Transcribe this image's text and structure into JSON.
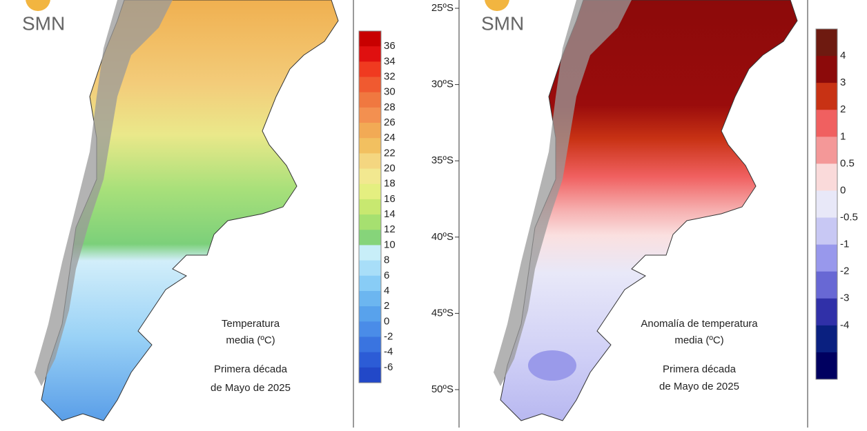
{
  "panels": [
    {
      "logo": "SMN",
      "caption": [
        "Temperatura",
        "media (ºC)",
        "Primera década",
        "de Mayo de 2025"
      ],
      "legend": {
        "labels": [
          "36",
          "34",
          "32",
          "30",
          "28",
          "26",
          "24",
          "22",
          "20",
          "18",
          "16",
          "14",
          "12",
          "10",
          "8",
          "6",
          "4",
          "2",
          "0",
          "-2",
          "-4",
          "-6"
        ],
        "colors": [
          "#c80000",
          "#e01010",
          "#f03a20",
          "#f05a30",
          "#f07840",
          "#f39050",
          "#f2aa55",
          "#f2c060",
          "#f4d680",
          "#f2e890",
          "#e4ef80",
          "#c8e870",
          "#a6e070",
          "#86d47a",
          "#c8eef8",
          "#a8def8",
          "#88ccf6",
          "#6cb6f0",
          "#58a2ec",
          "#4a8ce8",
          "#3a74e0",
          "#2c5cd6",
          "#2248c8"
        ]
      },
      "latitudes": []
    },
    {
      "logo": "SMN",
      "caption": [
        "Anomalía de temperatura",
        "media (ºC)",
        "Primera década",
        "de Mayo de 2025"
      ],
      "legend": {
        "labels": [
          "4",
          "3",
          "2",
          "1",
          "0.5",
          "0",
          "-0.5",
          "-1",
          "-2",
          "-3",
          "-4"
        ],
        "colors": [
          "#6e1a10",
          "#8c0a0a",
          "#c83214",
          "#f06060",
          "#f49898",
          "#fadada",
          "#e8e8f8",
          "#c8c8f4",
          "#9898ec",
          "#6868d4",
          "#3030a8",
          "#0a2080",
          "#000060"
        ]
      },
      "latitudes": [
        "25ºS",
        "30ºS",
        "35ºS",
        "40ºS",
        "45ºS",
        "50ºS"
      ]
    }
  ]
}
